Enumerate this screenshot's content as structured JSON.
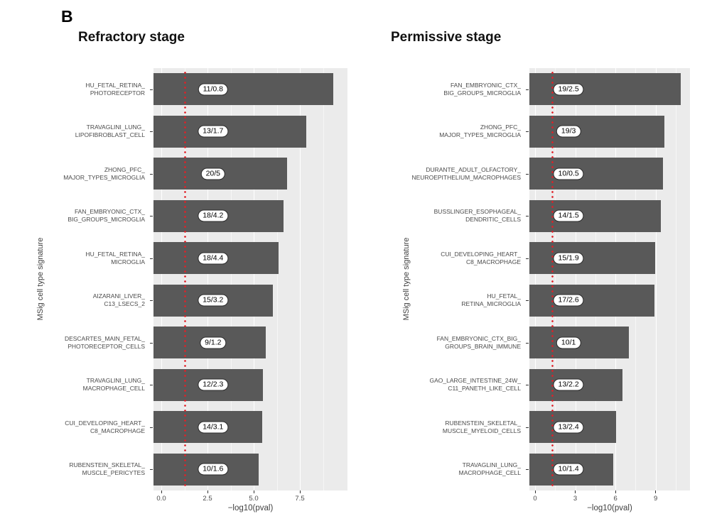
{
  "panel_label": "B",
  "colors": {
    "bar": "#595959",
    "panel_bg": "#EBEBEB",
    "gridline": "#FFFFFF",
    "threshold": "#E02128",
    "pill_bg": "#FFFFFF",
    "pill_border": "#2B2B2B",
    "axis_text": "#4A4A4A"
  },
  "chart_data": [
    {
      "type": "bar",
      "title": "Refractory stage",
      "ylabel": "MSig cell type signature",
      "xlabel": "−log10(pval)",
      "x_ticks": [
        "0.0",
        "2.5",
        "5.0",
        "7.5"
      ],
      "xlim": [
        0,
        10.1
      ],
      "grid": true,
      "legend": "none",
      "threshold": 1.3,
      "categories": [
        [
          "HU_FETAL_RETINA_",
          "PHOTORECEPTOR"
        ],
        [
          "TRAVAGLINI_LUNG_",
          "LIPOFIBROBLAST_CELL"
        ],
        [
          "ZHONG_PFC_",
          "MAJOR_TYPES_MICROGLIA"
        ],
        [
          "FAN_EMBRYONIC_CTX_",
          "BIG_GROUPS_MICROGLIA"
        ],
        [
          "HU_FETAL_RETINA_",
          "MICROGLIA"
        ],
        [
          "AIZARANI_LIVER_",
          "C13_LSECS_2"
        ],
        [
          "DESCARTES_MAIN_FETAL_",
          "PHOTORECEPTOR_CELLS"
        ],
        [
          "TRAVAGLINI_LUNG_",
          "MACROPHAGE_CELL"
        ],
        [
          "CUI_DEVELOPING_HEART_",
          "C8_MACROPHAGE"
        ],
        [
          "RUBENSTEIN_SKELETAL_",
          "MUSCLE_PERICYTES"
        ]
      ],
      "values": [
        9.3,
        7.85,
        6.8,
        6.6,
        6.35,
        6.05,
        5.65,
        5.5,
        5.45,
        5.25
      ],
      "bar_labels": [
        "11/0.8",
        "13/1.7",
        "20/5",
        "18/4.2",
        "18/4.4",
        "15/3.2",
        "9/1.2",
        "12/2.3",
        "14/3.1",
        "10/1.6"
      ]
    },
    {
      "type": "bar",
      "title": "Permissive stage",
      "ylabel": "MSig cell type signature",
      "xlabel": "−log10(pval)",
      "x_ticks": [
        "0",
        "3",
        "6",
        "9"
      ],
      "xlim": [
        0,
        11.55
      ],
      "grid": true,
      "legend": "none",
      "threshold": 1.3,
      "categories": [
        [
          "FAN_EMBRYONIC_CTX_",
          "BIG_GROUPS_MICROGLIA"
        ],
        [
          "ZHONG_PFC_",
          "MAJOR_TYPES_MICROGLIA"
        ],
        [
          "DURANTE_ADULT_OLFACTORY_",
          "NEUROEPITHELIUM_MACROPHAGES"
        ],
        [
          "BUSSLINGER_ESOPHAGEAL_",
          "DENDRITIC_CELLS"
        ],
        [
          "CUI_DEVELOPING_HEART_",
          "C8_MACROPHAGE"
        ],
        [
          "HU_FETAL_",
          "RETINA_MICROGLIA"
        ],
        [
          "FAN_EMBRYONIC_CTX_BIG_",
          "GROUPS_BRAIN_IMMUNE"
        ],
        [
          "GAO_LARGE_INTESTINE_24W_",
          "C11_PANETH_LIKE_CELL"
        ],
        [
          "RUBENSTEIN_SKELETAL_",
          "MUSCLE_MYELOID_CELLS"
        ],
        [
          "TRAVAGLINI_LUNG_",
          "MACROPHAGE_CELL"
        ]
      ],
      "values": [
        10.9,
        9.65,
        9.55,
        9.4,
        8.95,
        8.9,
        7.0,
        6.5,
        6.05,
        5.85
      ],
      "bar_labels": [
        "19/2.5",
        "19/3",
        "10/0.5",
        "14/1.5",
        "15/1.9",
        "17/2.6",
        "10/1",
        "13/2.2",
        "13/2.4",
        "10/1.4"
      ]
    }
  ]
}
